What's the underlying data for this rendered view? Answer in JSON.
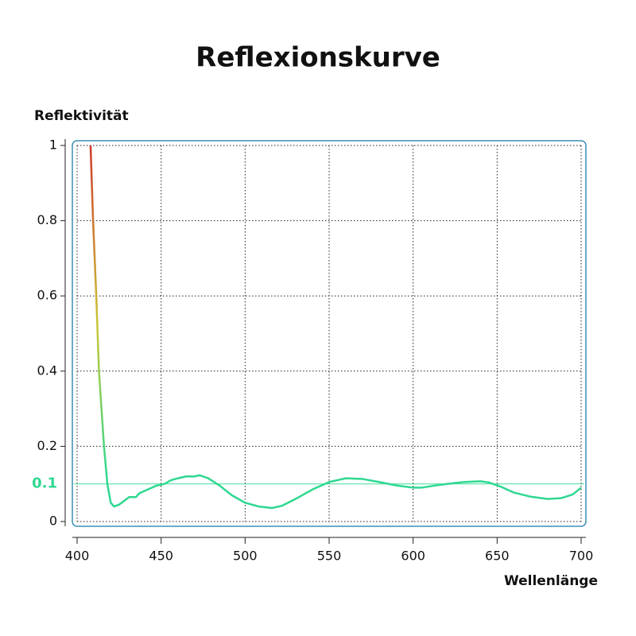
{
  "chart_data": {
    "type": "line",
    "title": "Reflexionskurve",
    "y_label": "Reflektivität",
    "x_label": "Wellenlänge",
    "series": [
      {
        "name": "Reflektivität",
        "color": "#2ed890",
        "x": [
          408,
          409.5,
          411.4,
          413,
          416,
          418,
          420,
          422,
          425,
          428,
          431,
          435,
          437,
          442,
          447,
          452,
          456,
          460,
          465,
          470,
          473,
          478,
          485,
          492,
          500,
          508,
          516,
          522,
          530,
          540,
          550,
          560,
          570,
          580,
          590,
          600,
          605,
          612,
          620,
          630,
          640,
          645,
          652,
          660,
          670,
          680,
          688,
          695,
          700
        ],
        "values": [
          1.0,
          0.8,
          0.6,
          0.4,
          0.2,
          0.1,
          0.05,
          0.04,
          0.045,
          0.055,
          0.065,
          0.065,
          0.075,
          0.085,
          0.095,
          0.1,
          0.11,
          0.115,
          0.12,
          0.12,
          0.123,
          0.115,
          0.095,
          0.07,
          0.05,
          0.04,
          0.036,
          0.042,
          0.06,
          0.085,
          0.105,
          0.115,
          0.113,
          0.105,
          0.096,
          0.09,
          0.09,
          0.095,
          0.1,
          0.105,
          0.107,
          0.104,
          0.093,
          0.077,
          0.066,
          0.06,
          0.062,
          0.072,
          0.09
        ]
      }
    ],
    "gradient_colors": [
      "#d0382a",
      "#c8c838",
      "#2ed890"
    ],
    "reference_line": 0.1,
    "reference_color": "#2ed890",
    "xlim": [
      400,
      700
    ],
    "xticks": [
      400,
      450,
      500,
      550,
      600,
      650,
      700
    ],
    "ylim": [
      0,
      1
    ],
    "yticks": [
      0,
      0.2,
      0.4,
      0.6,
      0.8,
      1
    ],
    "grid": true,
    "frame_color": "#3a8fb5"
  }
}
